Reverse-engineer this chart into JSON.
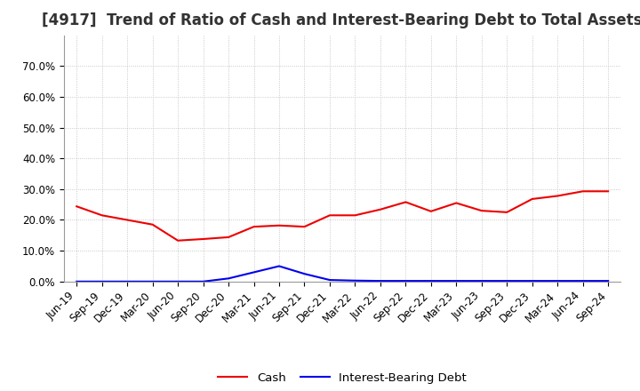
{
  "title": "[4917]  Trend of Ratio of Cash and Interest-Bearing Debt to Total Assets",
  "x_labels": [
    "Jun-19",
    "Sep-19",
    "Dec-19",
    "Mar-20",
    "Jun-20",
    "Sep-20",
    "Dec-20",
    "Mar-21",
    "Jun-21",
    "Sep-21",
    "Dec-21",
    "Mar-22",
    "Jun-22",
    "Sep-22",
    "Dec-22",
    "Mar-23",
    "Jun-23",
    "Sep-23",
    "Dec-23",
    "Mar-24",
    "Jun-24",
    "Sep-24"
  ],
  "cash": [
    0.244,
    0.215,
    0.2,
    0.185,
    0.133,
    0.138,
    0.144,
    0.178,
    0.182,
    0.178,
    0.215,
    0.215,
    0.234,
    0.258,
    0.228,
    0.255,
    0.23,
    0.225,
    0.268,
    0.278,
    0.293,
    0.293
  ],
  "interest_bearing_debt": [
    0.0,
    0.0,
    0.0,
    0.0,
    0.0,
    0.0,
    0.01,
    0.03,
    0.05,
    0.025,
    0.005,
    0.003,
    0.002,
    0.002,
    0.002,
    0.002,
    0.002,
    0.002,
    0.002,
    0.002,
    0.002,
    0.002
  ],
  "cash_color": "#ee0000",
  "debt_color": "#0000ee",
  "ylim": [
    0.0,
    0.8
  ],
  "yticks": [
    0.0,
    0.1,
    0.2,
    0.3,
    0.4,
    0.5,
    0.6,
    0.7
  ],
  "ytick_labels": [
    "0.0%",
    "10.0%",
    "20.0%",
    "30.0%",
    "40.0%",
    "50.0%",
    "60.0%",
    "70.0%"
  ],
  "grid_color": "#bbbbbb",
  "background_color": "#ffffff",
  "legend_cash": "Cash",
  "legend_debt": "Interest-Bearing Debt",
  "title_fontsize": 12,
  "tick_fontsize": 8.5,
  "legend_fontsize": 9.5,
  "line_width": 1.5
}
